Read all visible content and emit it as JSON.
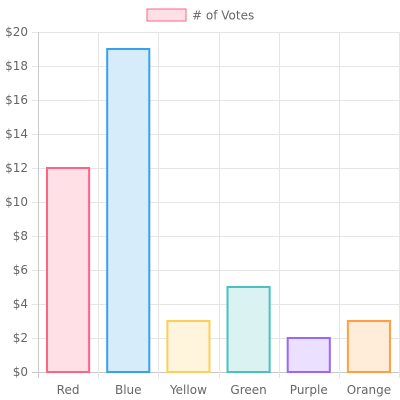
{
  "chart_data": {
    "type": "bar",
    "categories": [
      "Red",
      "Blue",
      "Yellow",
      "Green",
      "Purple",
      "Orange"
    ],
    "series": [
      {
        "name": "# of Votes",
        "values": [
          12,
          19,
          3,
          5,
          2,
          3
        ]
      }
    ],
    "ylim": [
      0,
      20
    ],
    "y_ticks": [
      0,
      2,
      4,
      6,
      8,
      10,
      12,
      14,
      16,
      18,
      20
    ],
    "y_tick_labels": [
      "$0",
      "$2",
      "$4",
      "$6",
      "$8",
      "$10",
      "$12",
      "$14",
      "$16",
      "$18",
      "$20"
    ],
    "grid": true,
    "legend_position": "top-center",
    "colors": {
      "fills": [
        "#ffe0e6",
        "#d7ecfb",
        "#fff5dd",
        "#dbf2f2",
        "#ebe0ff",
        "#ffecd9"
      ],
      "borders": [
        "#ff6384",
        "#36a2eb",
        "#ffce56",
        "#4bc0c0",
        "#9966ff",
        "#ff9f40"
      ],
      "legend_fill": "#ffe0e6",
      "legend_border": "#ff6384",
      "grid": "#e5e5e5",
      "axis": "#c8c8c8",
      "text": "#666666"
    }
  }
}
